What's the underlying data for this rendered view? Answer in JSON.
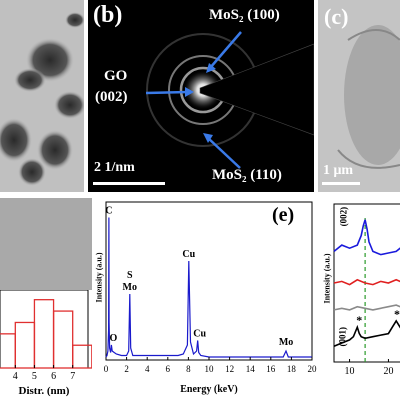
{
  "panel_b": {
    "label": "(b)",
    "annotations": {
      "mos2_100": "MoS₂ (100)",
      "go_line1": "GO",
      "go_line2": "(002)",
      "mos2_110": "MoS₂ (110)"
    },
    "scale_bar": "2 1/nm"
  },
  "panel_c": {
    "label": "(c)",
    "scale_bar": "1 μm"
  },
  "panel_d": {
    "x_ticks": [
      "4",
      "5",
      "6",
      "7"
    ],
    "xlabel": "Distr. (nm)"
  },
  "panel_e": {
    "label": "(e)",
    "ylabel": "Intensity (a.u.)",
    "xlabel": "Energy (keV)",
    "x_ticks": [
      "0",
      "2",
      "4",
      "6",
      "8",
      "10",
      "12",
      "14",
      "16",
      "18",
      "20"
    ],
    "peak_labels": [
      "C",
      "O",
      "S",
      "Mo",
      "Cu",
      "Cu",
      "Mo"
    ]
  },
  "panel_f": {
    "ylabel": "Intensity (a.u.)",
    "x_ticks": [
      "10",
      "20"
    ],
    "peak_labels": [
      "(002)",
      "(001)",
      "*",
      "*"
    ]
  },
  "chart_data": [
    {
      "type": "bar",
      "panel": "d",
      "categories": [
        "3.5",
        "4.5",
        "5.5",
        "6.5",
        "7.5"
      ],
      "values": [
        3,
        4,
        6,
        5,
        2
      ],
      "xlabel": "Distr. (nm)",
      "x_ticks": [
        4,
        5,
        6,
        7
      ],
      "bar_color": "#e03030"
    },
    {
      "type": "line",
      "panel": "e",
      "xlabel": "Energy (keV)",
      "ylabel": "Intensity (a.u.)",
      "xlim": [
        0,
        20
      ],
      "ylim": [
        0,
        100
      ],
      "line_color": "#1a1acc",
      "x": [
        0,
        0.1,
        0.18,
        0.25,
        0.277,
        0.3,
        0.35,
        0.45,
        0.525,
        0.6,
        0.8,
        1.0,
        1.5,
        2.0,
        2.2,
        2.307,
        2.4,
        2.6,
        3.0,
        4,
        5,
        6,
        7,
        7.5,
        7.9,
        8.04,
        8.2,
        8.5,
        8.8,
        8.9,
        9.0,
        9.2,
        10,
        12,
        14,
        16,
        17.2,
        17.48,
        17.7,
        18.5,
        20
      ],
      "y": [
        2,
        3,
        6,
        20,
        95,
        25,
        8,
        5,
        10,
        6,
        5,
        4,
        3,
        3,
        6,
        44,
        8,
        3,
        3,
        3,
        3,
        3,
        3,
        4,
        10,
        66,
        12,
        4,
        6,
        13,
        5,
        3,
        2,
        2,
        2,
        2,
        2,
        6,
        2,
        2,
        2
      ],
      "peaks": [
        {
          "label": "C",
          "x": 0.277,
          "y": 95
        },
        {
          "label": "O",
          "x": 0.525,
          "y": 10
        },
        {
          "label": "S",
          "x": 2.307,
          "y": 44
        },
        {
          "label": "Mo",
          "x": 2.293,
          "y": 44
        },
        {
          "label": "Cu",
          "x": 8.04,
          "y": 66
        },
        {
          "label": "Cu",
          "x": 8.9,
          "y": 13
        },
        {
          "label": "Mo",
          "x": 17.48,
          "y": 6
        }
      ]
    },
    {
      "type": "line",
      "panel": "f",
      "ylabel": "Intensity (a.u.)",
      "xlim": [
        6,
        24
      ],
      "ylim": [
        0,
        100
      ],
      "dashed_marker_x": 14,
      "dashed_marker_color": "#2a9a2a",
      "series": [
        {
          "color": "#1a1adc",
          "x": [
            6,
            8,
            10,
            12,
            13,
            13.5,
            14,
            14.5,
            15,
            16,
            18,
            20,
            22,
            24
          ],
          "y": [
            70,
            74,
            72,
            74,
            80,
            86,
            90,
            84,
            76,
            70,
            68,
            69,
            70,
            74
          ]
        },
        {
          "color": "#e02020",
          "x": [
            6,
            8,
            10,
            12,
            14,
            16,
            18,
            20,
            22,
            24
          ],
          "y": [
            50,
            51,
            49,
            52,
            50,
            49,
            51,
            50,
            52,
            50
          ]
        },
        {
          "color": "#8a8a8a",
          "x": [
            6,
            8,
            10,
            12,
            14,
            16,
            18,
            20,
            22,
            24
          ],
          "y": [
            33,
            34,
            33,
            35,
            34,
            33,
            34,
            35,
            36,
            34
          ]
        },
        {
          "color": "#000000",
          "x": [
            6,
            8,
            10,
            11,
            12,
            12.5,
            13,
            14,
            16,
            18,
            20,
            21,
            22,
            23,
            24
          ],
          "y": [
            10,
            12,
            14,
            16,
            22,
            18,
            16,
            15,
            16,
            17,
            18,
            22,
            26,
            22,
            24
          ]
        }
      ]
    }
  ]
}
